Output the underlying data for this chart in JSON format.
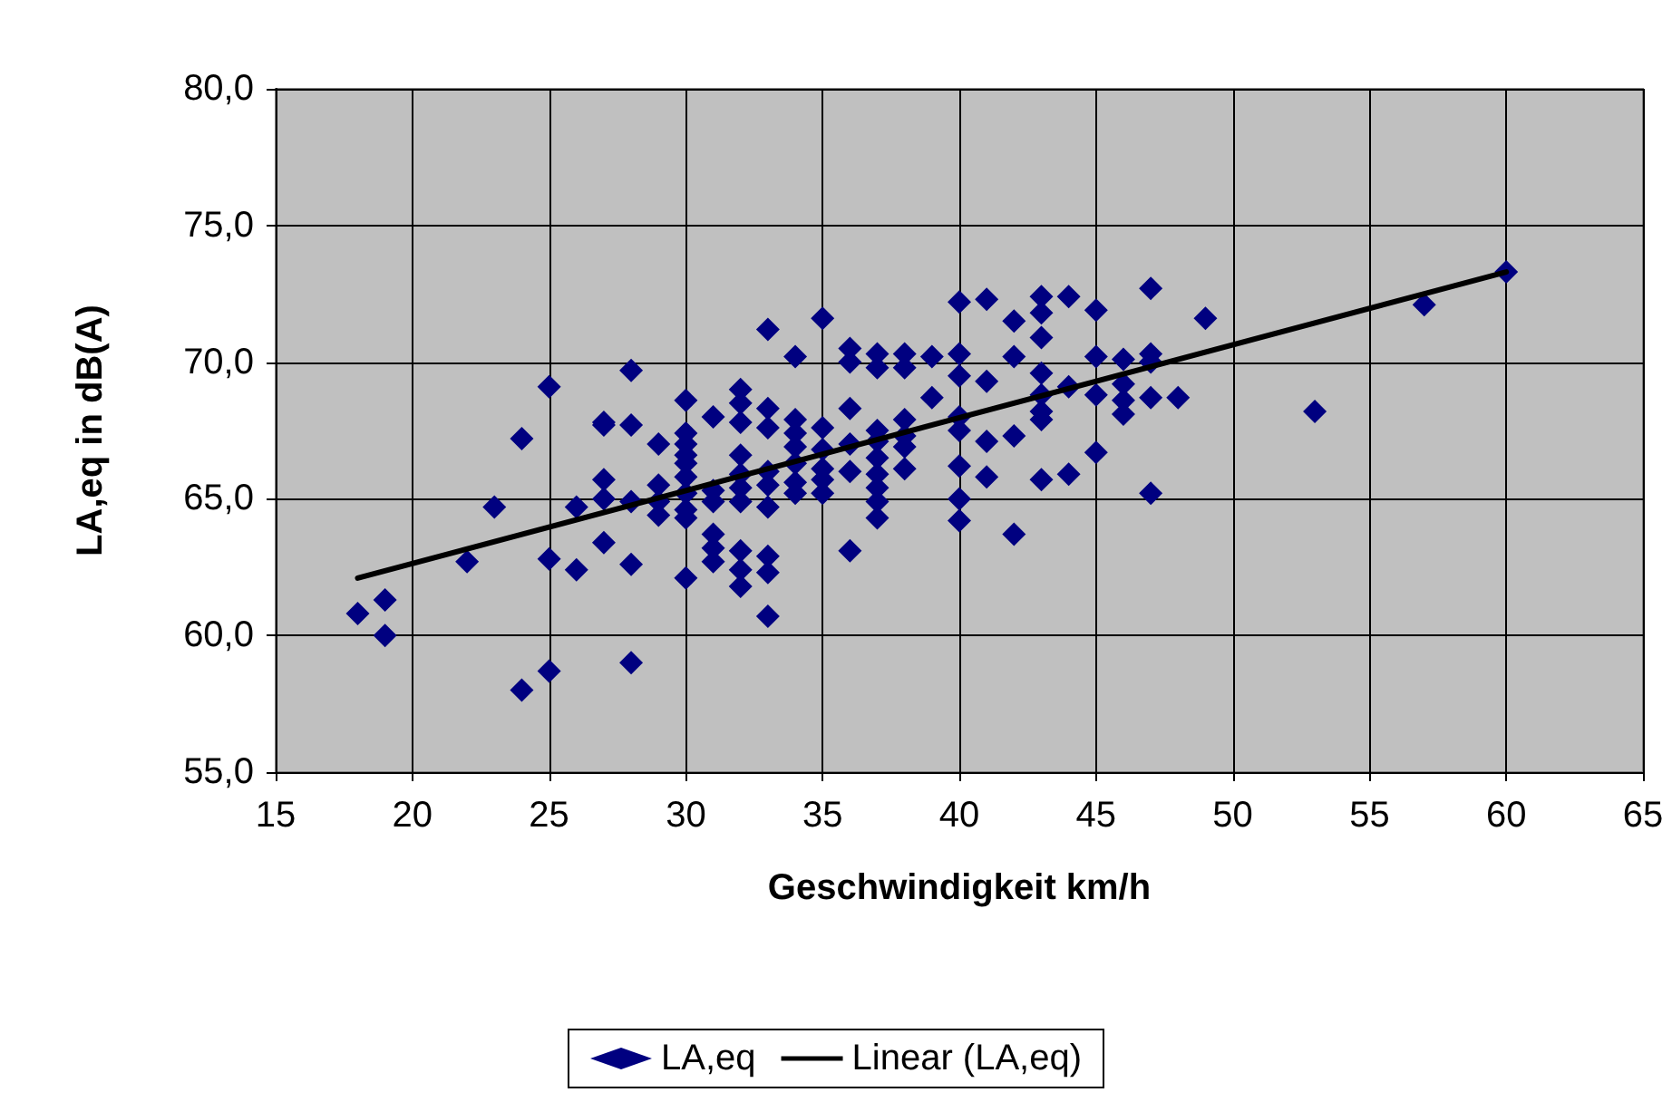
{
  "chart_data": {
    "type": "scatter",
    "xlabel": "Geschwindigkeit km/h",
    "ylabel": "LA,eq in dB(A)",
    "xlim": [
      15,
      65
    ],
    "xticks": [
      15,
      20,
      25,
      30,
      35,
      40,
      45,
      50,
      55,
      60,
      65
    ],
    "ylim": [
      55,
      80
    ],
    "yticks": [
      {
        "value": 55,
        "label": "55,0"
      },
      {
        "value": 60,
        "label": "60,0"
      },
      {
        "value": 65,
        "label": "65,0"
      },
      {
        "value": 70,
        "label": "70,0"
      },
      {
        "value": 75,
        "label": "75,0"
      },
      {
        "value": 80,
        "label": "80,0"
      }
    ],
    "grid": true,
    "legend": "bottom",
    "series": [
      {
        "name": "LA,eq",
        "marker": "diamond",
        "color": "#000080",
        "x": [
          18,
          19,
          19,
          22,
          23,
          24,
          24,
          25,
          25,
          25,
          26,
          26,
          27,
          27,
          27,
          27,
          27,
          28,
          28,
          28,
          28,
          28,
          29,
          29,
          29,
          29,
          30,
          30,
          30,
          30,
          30,
          30,
          30,
          30,
          30,
          30,
          31,
          31,
          31,
          31,
          31,
          31,
          32,
          32,
          32,
          32,
          32,
          32,
          32,
          32,
          32,
          32,
          33,
          33,
          33,
          33,
          33,
          33,
          33,
          33,
          33,
          34,
          34,
          34,
          34,
          34,
          34,
          34,
          35,
          35,
          35,
          35,
          35,
          35,
          36,
          36,
          36,
          36,
          36,
          36,
          37,
          37,
          37,
          37,
          37,
          37,
          37,
          37,
          37,
          38,
          38,
          38,
          38,
          38,
          38,
          39,
          39,
          40,
          40,
          40,
          40,
          40,
          40,
          40,
          40,
          41,
          41,
          41,
          41,
          42,
          42,
          42,
          42,
          43,
          43,
          43,
          43,
          43,
          43,
          43,
          43,
          44,
          44,
          44,
          45,
          45,
          45,
          45,
          46,
          46,
          46,
          46,
          47,
          47,
          47,
          47,
          47,
          48,
          49,
          53,
          57,
          60
        ],
        "values": [
          60.8,
          61.3,
          60.0,
          62.7,
          64.7,
          67.2,
          58.0,
          69.1,
          62.8,
          58.7,
          64.7,
          62.4,
          67.8,
          67.7,
          65.7,
          65.0,
          63.4,
          69.7,
          67.7,
          64.9,
          62.6,
          59.0,
          67.0,
          65.5,
          64.9,
          64.4,
          68.6,
          67.4,
          67.0,
          66.6,
          66.3,
          65.8,
          65.2,
          64.6,
          64.3,
          62.1,
          68.0,
          65.3,
          64.9,
          63.7,
          63.2,
          62.7,
          69.0,
          68.5,
          67.8,
          66.6,
          65.9,
          65.4,
          64.9,
          63.1,
          62.4,
          61.8,
          71.2,
          68.3,
          67.6,
          66.0,
          65.5,
          64.7,
          62.9,
          62.3,
          60.7,
          70.2,
          67.9,
          67.4,
          66.9,
          66.3,
          65.6,
          65.2,
          71.6,
          67.6,
          66.8,
          66.1,
          65.7,
          65.2,
          70.5,
          70.0,
          68.3,
          67.0,
          66.0,
          63.1,
          70.3,
          69.8,
          67.5,
          67.1,
          66.5,
          65.9,
          65.4,
          64.9,
          64.3,
          70.3,
          69.8,
          67.9,
          67.3,
          66.9,
          66.1,
          70.2,
          68.7,
          72.2,
          70.3,
          69.5,
          68.0,
          67.5,
          66.2,
          65.0,
          64.2,
          72.3,
          69.3,
          67.1,
          65.8,
          71.5,
          70.2,
          67.3,
          63.7,
          72.4,
          71.8,
          70.9,
          69.6,
          68.8,
          68.2,
          67.9,
          65.7,
          72.4,
          69.1,
          65.9,
          71.9,
          70.2,
          68.8,
          66.7,
          70.1,
          69.2,
          68.6,
          68.1,
          72.7,
          70.3,
          70.0,
          68.7,
          65.2,
          68.7,
          71.6,
          68.2,
          72.1,
          73.3
        ]
      },
      {
        "name": "Linear (LA,eq)",
        "type": "line",
        "marker": "none",
        "line_style": "solid",
        "color": "#000000",
        "x": [
          18,
          60
        ],
        "values": [
          62.1,
          73.3
        ]
      }
    ]
  }
}
